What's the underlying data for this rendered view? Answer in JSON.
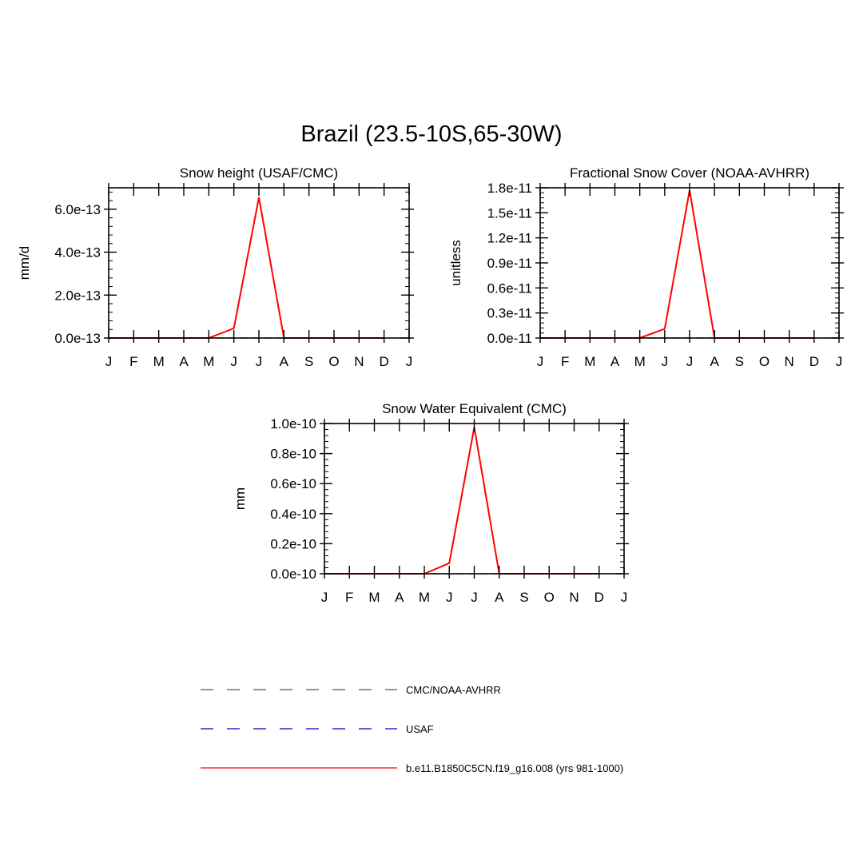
{
  "figure": {
    "title": "Brazil (23.5-10S,65-30W)"
  },
  "months": [
    "J",
    "F",
    "M",
    "A",
    "M",
    "J",
    "J",
    "A",
    "S",
    "O",
    "N",
    "D",
    "J"
  ],
  "colors": {
    "obs1": "#000000",
    "obs2": "#0000cc",
    "model": "#ff0000"
  },
  "legend": {
    "items": [
      {
        "label": "CMC/NOAA-AVHRR",
        "style": "dashed",
        "color": "#555555"
      },
      {
        "label": "USAF",
        "style": "dashed",
        "color": "#0000cc"
      },
      {
        "label": "b.e11.B1850C5CN.f19_g16.008 (yrs 981-1000)",
        "style": "solid",
        "color": "#ff0000"
      }
    ]
  },
  "chart_data": [
    {
      "type": "line",
      "title": "Snow height (USAF/CMC)",
      "ylabel": "mm/d",
      "xlabel": "",
      "ylim": [
        0,
        7e-13
      ],
      "yticks": [
        0,
        2e-13,
        4e-13,
        6e-13
      ],
      "ytick_labels": [
        "0.0e-13",
        "2.0e-13",
        "4.0e-13",
        "6.0e-13"
      ],
      "x": [
        1,
        2,
        3,
        4,
        5,
        6,
        7,
        8,
        9,
        10,
        11,
        12
      ],
      "series": [
        {
          "values": [
            0,
            0,
            0,
            0,
            0,
            0,
            0,
            0,
            0,
            0,
            0,
            0
          ],
          "style": "dashed",
          "color": "#000000"
        },
        {
          "values": [
            0,
            0,
            0,
            0,
            0,
            4.5e-14,
            6.55e-13,
            0,
            0,
            0,
            0,
            0
          ],
          "style": "solid",
          "color": "#ff0000"
        }
      ]
    },
    {
      "type": "line",
      "title": "Fractional Snow Cover (NOAA-AVHRR)",
      "ylabel": "unitless",
      "xlabel": "",
      "ylim": [
        0,
        1.8e-11
      ],
      "yticks": [
        0,
        3e-12,
        6e-12,
        9e-12,
        1.2e-11,
        1.5e-11,
        1.8e-11
      ],
      "ytick_labels": [
        "0.0e-11",
        "0.3e-11",
        "0.6e-11",
        "0.9e-11",
        "1.2e-11",
        "1.5e-11",
        "1.8e-11"
      ],
      "x": [
        1,
        2,
        3,
        4,
        5,
        6,
        7,
        8,
        9,
        10,
        11,
        12
      ],
      "series": [
        {
          "values": [
            0,
            0,
            0,
            0,
            0,
            0,
            0,
            0,
            0,
            0,
            0,
            0
          ],
          "style": "dashed",
          "color": "#000000"
        },
        {
          "values": [
            0,
            0,
            0,
            0,
            0,
            1.1e-12,
            1.77e-11,
            0,
            0,
            0,
            0,
            0
          ],
          "style": "solid",
          "color": "#ff0000"
        }
      ]
    },
    {
      "type": "line",
      "title": "Snow Water Equivalent (CMC)",
      "ylabel": "mm",
      "xlabel": "",
      "ylim": [
        0,
        1e-10
      ],
      "yticks": [
        0,
        2e-11,
        4e-11,
        6e-11,
        8e-11,
        1e-10
      ],
      "ytick_labels": [
        "0.0e-10",
        "0.2e-10",
        "0.4e-10",
        "0.6e-10",
        "0.8e-10",
        "1.0e-10"
      ],
      "x": [
        1,
        2,
        3,
        4,
        5,
        6,
        7,
        8,
        9,
        10,
        11,
        12
      ],
      "series": [
        {
          "values": [
            0,
            0,
            0,
            0,
            0,
            0,
            0,
            0,
            0,
            0,
            0,
            0
          ],
          "style": "dashed",
          "color": "#000000"
        },
        {
          "values": [
            0,
            0,
            0,
            0,
            0,
            7e-12,
            9.75e-11,
            0,
            0,
            0,
            0,
            0
          ],
          "style": "solid",
          "color": "#ff0000"
        }
      ]
    }
  ]
}
